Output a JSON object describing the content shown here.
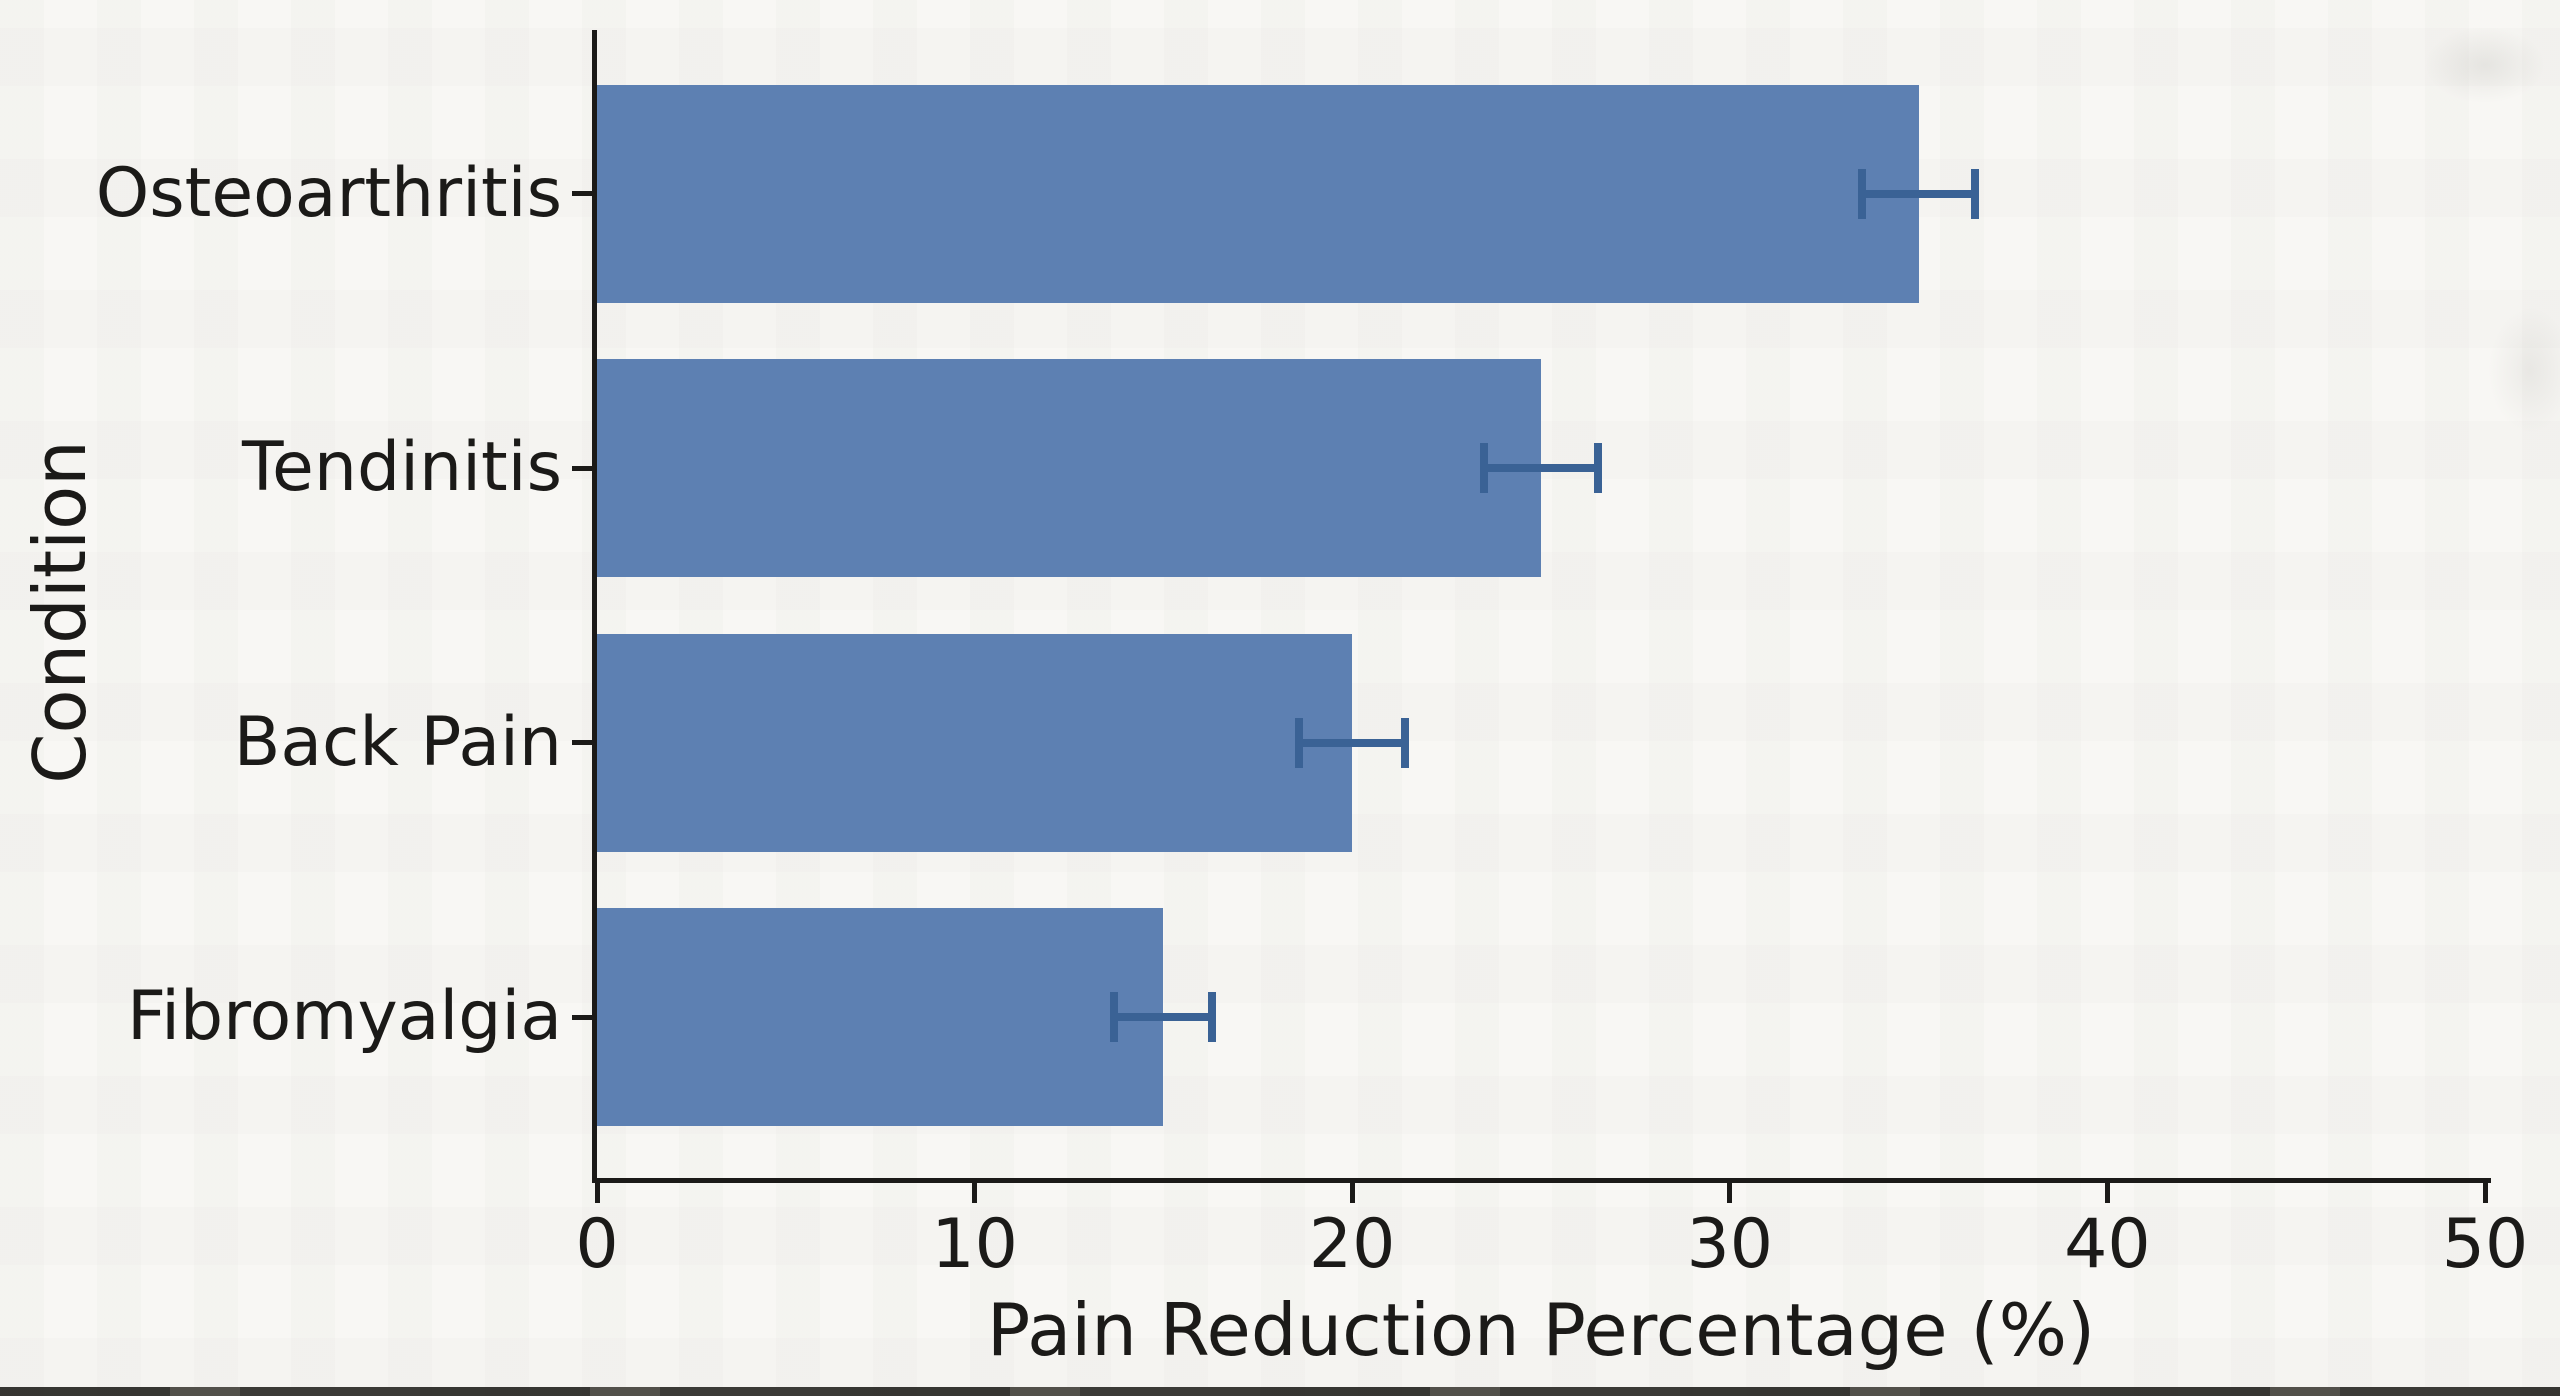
{
  "chart_data": {
    "type": "bar",
    "orientation": "horizontal",
    "title": "",
    "xlabel": "Pain Reduction Percentage (%)",
    "ylabel": "Condition",
    "categories": [
      "Osteoarthritis",
      "Tendinitis",
      "Back Pain",
      "Fibromyalgia"
    ],
    "values": [
      35,
      25,
      20,
      15
    ],
    "errors": [
      1.5,
      1.5,
      1.4,
      1.3
    ],
    "xlim": [
      0,
      50
    ],
    "xticks": [
      0,
      10,
      20,
      30,
      40,
      50
    ],
    "grid": false,
    "legend": null,
    "colors": {
      "bar": "#5d80b2",
      "error_bar": "#3a6295",
      "axis": "#1b1a18",
      "text": "#1b1a18",
      "background": "#f8f7f4"
    }
  }
}
